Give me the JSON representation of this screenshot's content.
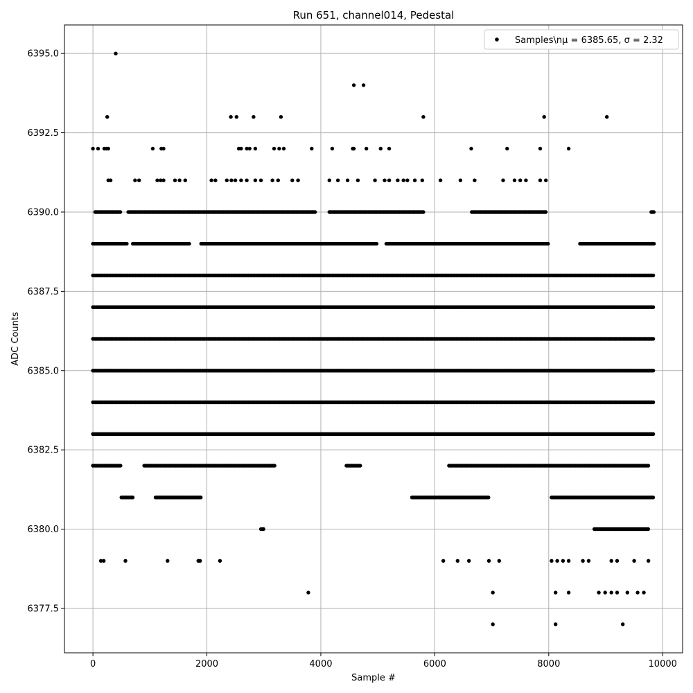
{
  "chart_data": {
    "type": "scatter",
    "title": "Run 651, channel014, Pedestal",
    "xlabel": "Sample #",
    "ylabel": "ADC Counts",
    "xlim": [
      -500,
      10350
    ],
    "ylim": [
      6376.1,
      6395.9
    ],
    "xticks": [
      0,
      2000,
      4000,
      6000,
      8000,
      10000
    ],
    "xtick_labels": [
      "0",
      "2000",
      "4000",
      "6000",
      "8000",
      "10000"
    ],
    "yticks": [
      6377.5,
      6380.0,
      6382.5,
      6385.0,
      6387.5,
      6390.0,
      6392.5,
      6395.0
    ],
    "ytick_labels": [
      "6377.5",
      "6380.0",
      "6382.5",
      "6385.0",
      "6387.5",
      "6390.0",
      "6392.5",
      "6395.0"
    ],
    "grid": true,
    "legend_position": "top-right",
    "marker_color": "#000000",
    "series": [
      {
        "name": "Samples\\nμ = 6385.65, σ = 2.32",
        "legend_label_plain": "Samples\\n",
        "legend_label_math": "μ = 6385.65, σ = 2.32",
        "x": [
          400,
          4580,
          4750,
          250,
          2420,
          2520,
          2820,
          3300,
          5800,
          7920,
          9020,
          0,
          90,
          200,
          240,
          270,
          1050,
          1200,
          1240,
          2560,
          2600,
          2700,
          2750,
          2850,
          3180,
          3270,
          3350,
          3840,
          4200,
          4560,
          4580,
          4800,
          5050,
          5200,
          6640,
          7270,
          7850,
          8350,
          270,
          310,
          740,
          810,
          1130,
          1190,
          1240,
          1440,
          1520,
          1620,
          2080,
          2150,
          2350,
          2430,
          2500,
          2600,
          2700,
          2850,
          2950,
          3150,
          3250,
          3500,
          3600,
          4150,
          4300,
          4470,
          4650,
          4950,
          5120,
          5200,
          5350,
          5450,
          5520,
          5650,
          5780,
          6100,
          6450,
          6700,
          7200,
          7400,
          7500,
          7600,
          7850,
          7950,
          3780,
          7020,
          8120,
          8350,
          8880,
          8990,
          9100,
          9200,
          9380,
          9560,
          9670,
          7020,
          8120,
          9300,
          140,
          190,
          570,
          1310,
          1850,
          1880,
          2230,
          6150,
          6400,
          6600,
          6950,
          7130,
          8050,
          8150,
          8250,
          8350,
          8600,
          8700,
          9100,
          9200,
          9500,
          9750
        ],
        "y": [
          6395,
          6394,
          6394,
          6393,
          6393,
          6393,
          6393,
          6393,
          6393,
          6393,
          6393,
          6392,
          6392,
          6392,
          6392,
          6392,
          6392,
          6392,
          6392,
          6392,
          6392,
          6392,
          6392,
          6392,
          6392,
          6392,
          6392,
          6392,
          6392,
          6392,
          6392,
          6392,
          6392,
          6392,
          6392,
          6392,
          6392,
          6392,
          6391,
          6391,
          6391,
          6391,
          6391,
          6391,
          6391,
          6391,
          6391,
          6391,
          6391,
          6391,
          6391,
          6391,
          6391,
          6391,
          6391,
          6391,
          6391,
          6391,
          6391,
          6391,
          6391,
          6391,
          6391,
          6391,
          6391,
          6391,
          6391,
          6391,
          6391,
          6391,
          6391,
          6391,
          6391,
          6391,
          6391,
          6391,
          6391,
          6391,
          6391,
          6391,
          6391,
          6391,
          6378,
          6378,
          6378,
          6378,
          6378,
          6378,
          6378,
          6378,
          6378,
          6378,
          6378,
          6377,
          6377,
          6377,
          6379,
          6379,
          6379,
          6379,
          6379,
          6379,
          6379,
          6379,
          6379,
          6379,
          6379,
          6379,
          6379,
          6379,
          6379,
          6379,
          6379,
          6379,
          6379,
          6379,
          6379,
          6379
        ]
      }
    ]
  }
}
